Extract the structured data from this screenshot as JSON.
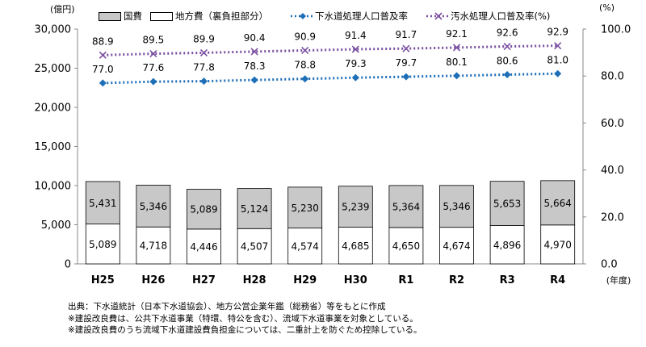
{
  "chart_data": {
    "type": "bar+line",
    "left_axis_unit": "(億円)",
    "right_axis_unit": "(%)",
    "x_axis_unit": "(年度)",
    "categories": [
      "H25",
      "H26",
      "H27",
      "H28",
      "H29",
      "H30",
      "R1",
      "R2",
      "R3",
      "R4"
    ],
    "left_ticks": [
      "0",
      "5,000",
      "10,000",
      "15,000",
      "20,000",
      "25,000",
      "30,000"
    ],
    "right_ticks": [
      "0.0",
      "20.0",
      "40.0",
      "60.0",
      "80.0",
      "100.0"
    ],
    "ylim_left": [
      0,
      30000
    ],
    "ylim_right": [
      0,
      100
    ],
    "bar_series": [
      {
        "name": "地方費（裏負担部分）",
        "color": "#ffffff",
        "values": [
          5089,
          4718,
          4446,
          4507,
          4574,
          4685,
          4650,
          4674,
          4896,
          4970
        ],
        "labels": [
          "5,089",
          "4,718",
          "4,446",
          "4,507",
          "4,574",
          "4,685",
          "4,650",
          "4,674",
          "4,896",
          "4,970"
        ]
      },
      {
        "name": "国費",
        "color": "#c8c8c8",
        "values": [
          5431,
          5346,
          5089,
          5124,
          5230,
          5239,
          5364,
          5346,
          5653,
          5664
        ],
        "labels": [
          "5,431",
          "5,346",
          "5,089",
          "5,124",
          "5,230",
          "5,239",
          "5,364",
          "5,346",
          "5,653",
          "5,664"
        ]
      }
    ],
    "line_series": [
      {
        "name": "下水道処理人口普及率",
        "color": "#1f6fb8",
        "marker": "diamond",
        "values": [
          77.0,
          77.6,
          77.8,
          78.3,
          78.8,
          79.3,
          79.7,
          80.1,
          80.6,
          81.0
        ],
        "labels": [
          "77.0",
          "77.6",
          "77.8",
          "78.3",
          "78.8",
          "79.3",
          "79.7",
          "80.1",
          "80.6",
          "81.0"
        ]
      },
      {
        "name": "汚水処理人口普及率(%)",
        "color": "#7a4fa0",
        "marker": "x",
        "values": [
          88.9,
          89.5,
          89.9,
          90.4,
          90.9,
          91.4,
          91.7,
          92.1,
          92.6,
          92.9
        ],
        "labels": [
          "88.9",
          "89.5",
          "89.9",
          "90.4",
          "90.9",
          "91.4",
          "91.7",
          "92.1",
          "92.6",
          "92.9"
        ]
      }
    ],
    "legend": [
      {
        "label": "国費",
        "kind": "gray-box"
      },
      {
        "label": "地方費（裏負担部分）",
        "kind": "white-box"
      },
      {
        "label": "下水道処理人口普及率",
        "kind": "blue-diamond-dotted"
      },
      {
        "label": "汚水処理人口普及率(%)",
        "kind": "purple-x-dotted"
      }
    ],
    "legend_position": "top"
  },
  "notes": [
    "出典：下水道統計（日本下水道協会）、地方公営企業年鑑（総務省）等をもとに作成",
    "※建設改良費は、公共下水道事業（特環、特公を含む）、流域下水道事業を対象としている。",
    "※建設改良費のうち流域下水道建設費負担金については、二重計上を防ぐため控除している。"
  ]
}
